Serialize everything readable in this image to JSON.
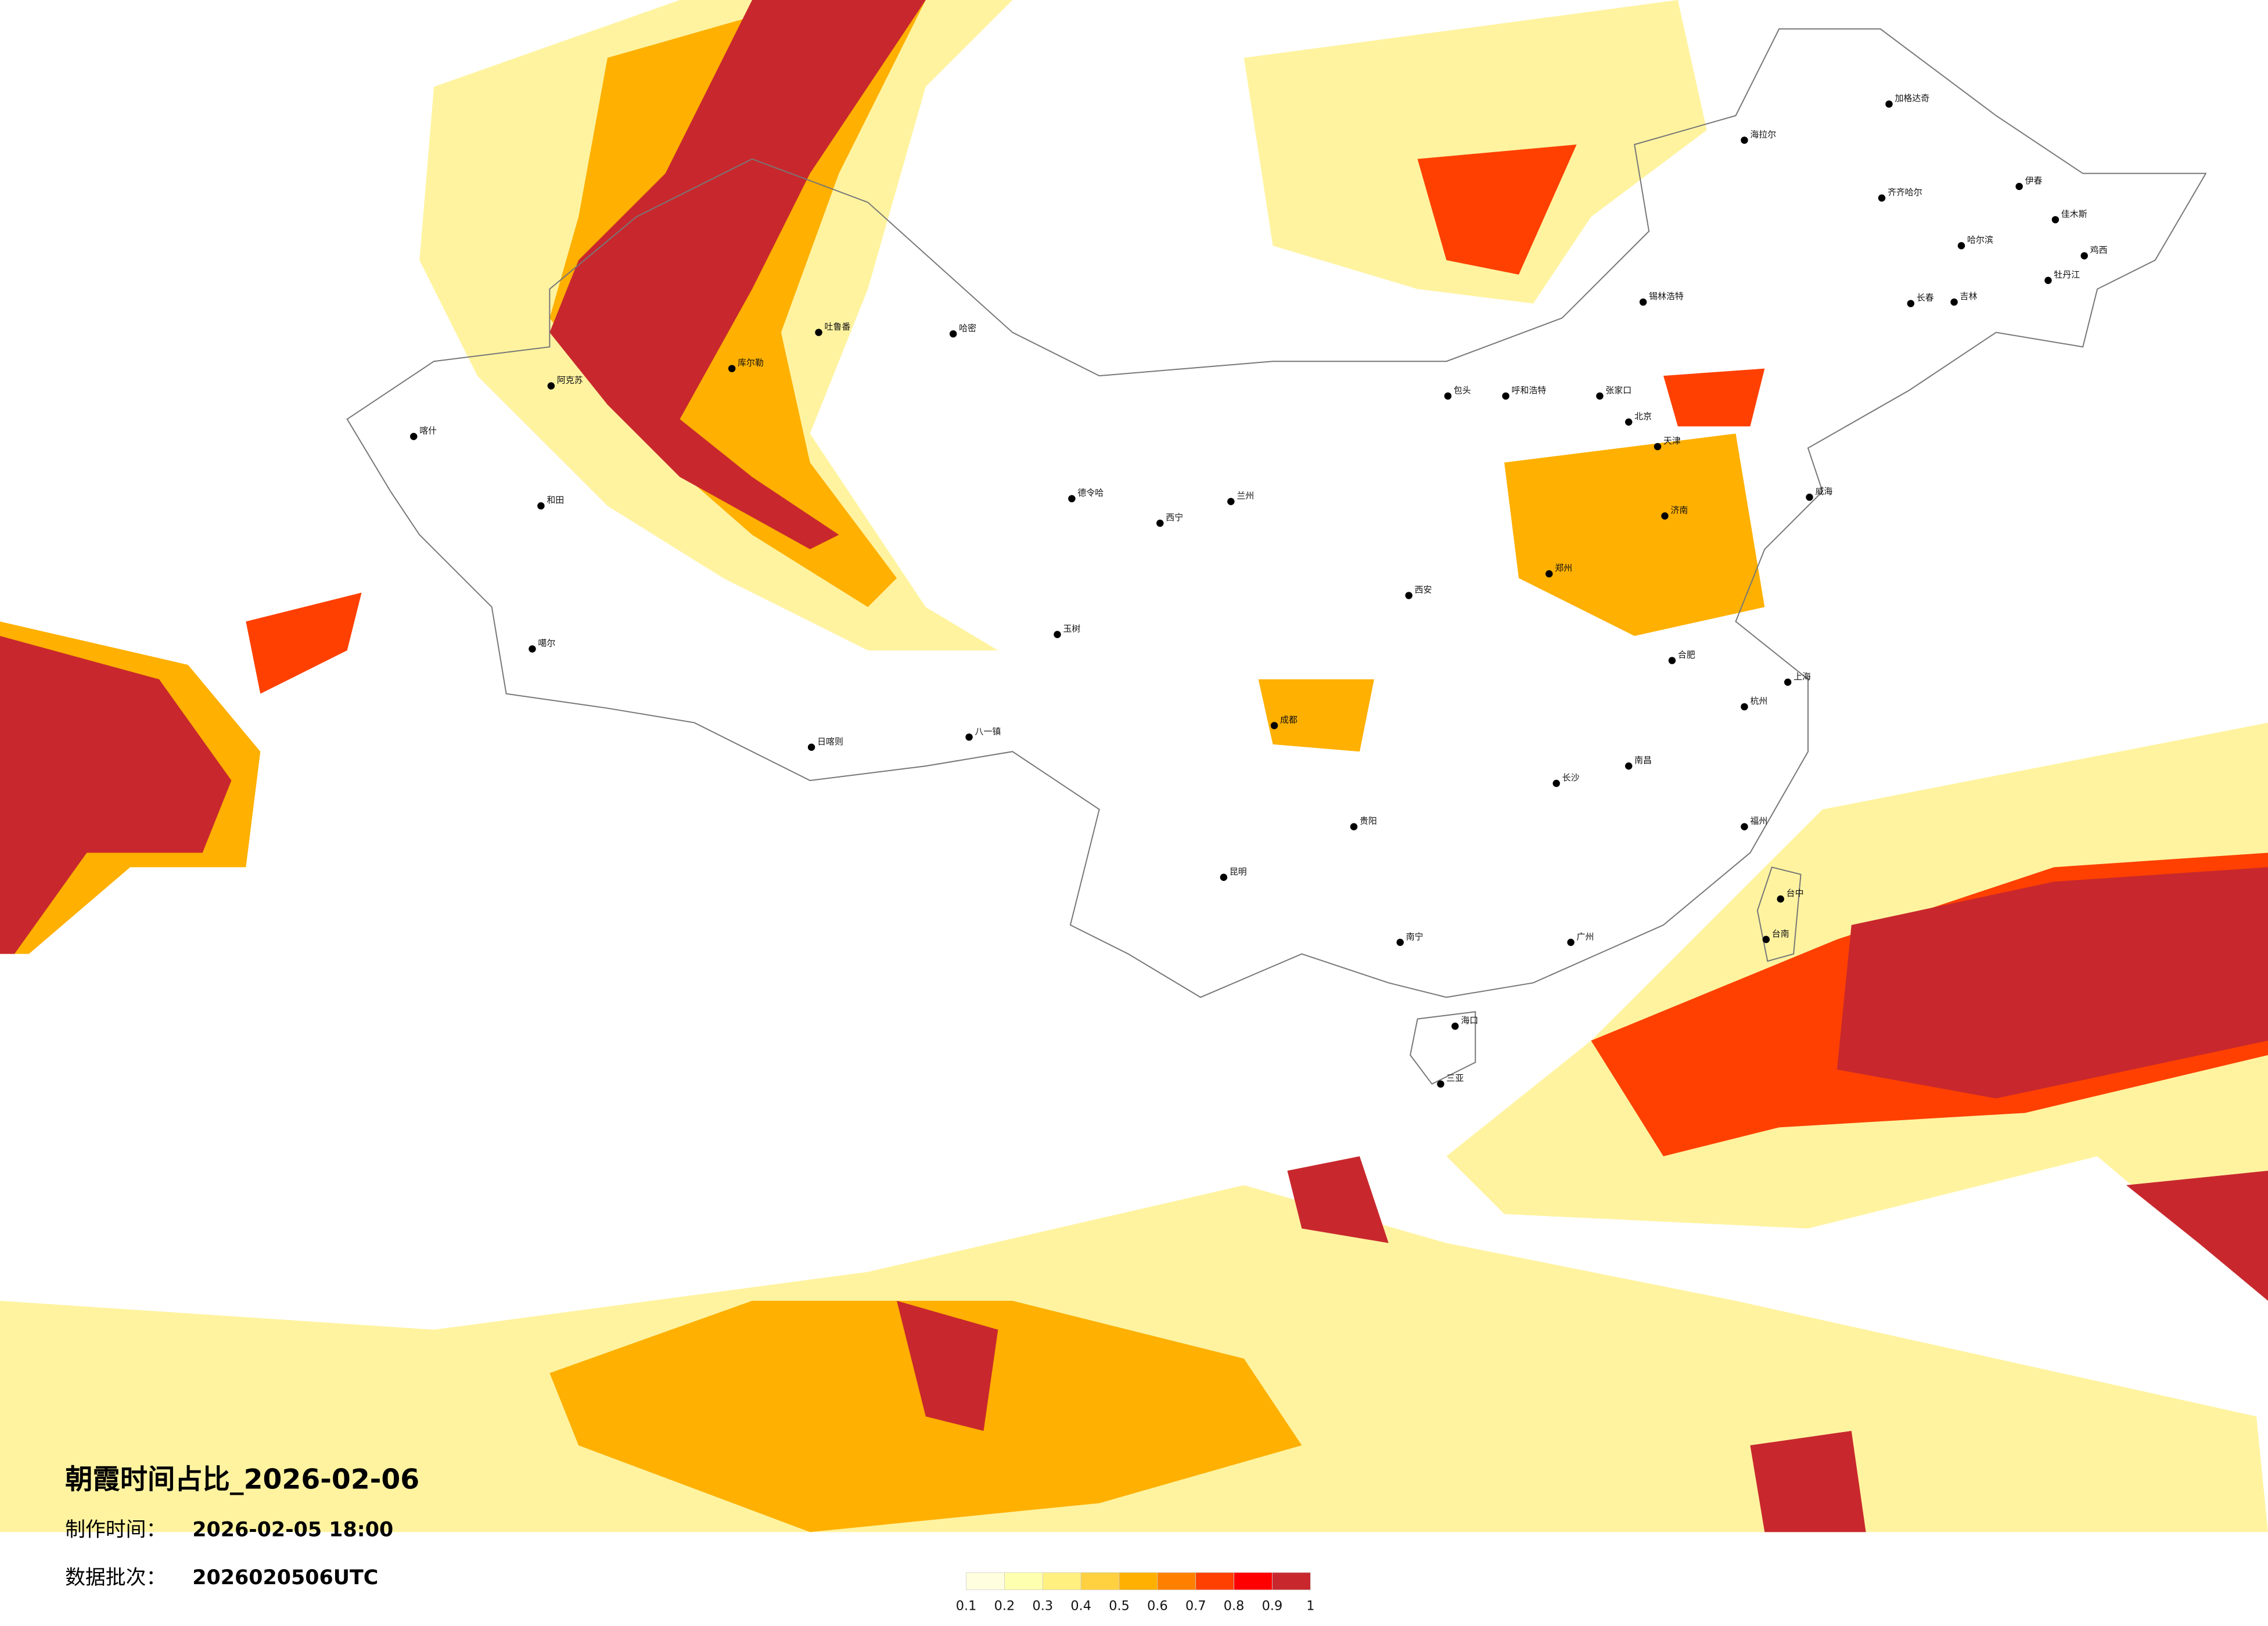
{
  "map": {
    "title": "朝霞时间占比_2026-02-06",
    "made_label": "制作时间：",
    "made_time": "2026-02-05 18:00",
    "batch_label": "数据批次：",
    "batch": "2026020506UTC",
    "colorbar": {
      "ticks": [
        0.1,
        0.2,
        0.3,
        0.4,
        0.5,
        0.6,
        0.7,
        0.8,
        0.9,
        1
      ],
      "colors": [
        "#ffffe0",
        "#ffffb0",
        "#fff080",
        "#ffd040",
        "#ffb000",
        "#ff8000",
        "#ff4000",
        "#ff0000",
        "#c8282d"
      ]
    },
    "cities": [
      "加格达奇",
      "海拉尔",
      "锡林浩特",
      "呼和浩特",
      "包头",
      "张家口",
      "北京",
      "天津",
      "威海",
      "济南",
      "郑州",
      "西安",
      "兰州",
      "西宁",
      "成都",
      "贵阳",
      "昆明",
      "南宁",
      "海口",
      "三亚",
      "广州",
      "福州",
      "台中",
      "台南",
      "杭州",
      "长沙",
      "南昌",
      "合肥",
      "喀什",
      "和田",
      "噶尔",
      "日喀则",
      "八一镇",
      "玉树",
      "德令哈",
      "哈密",
      "阿克苏",
      "库尔勒",
      "吐鲁番",
      "伊春",
      "佳木斯",
      "鸡西",
      "牡丹江",
      "吉林",
      "长春",
      "齐齐哈尔",
      "哈尔滨",
      "上海"
    ]
  }
}
